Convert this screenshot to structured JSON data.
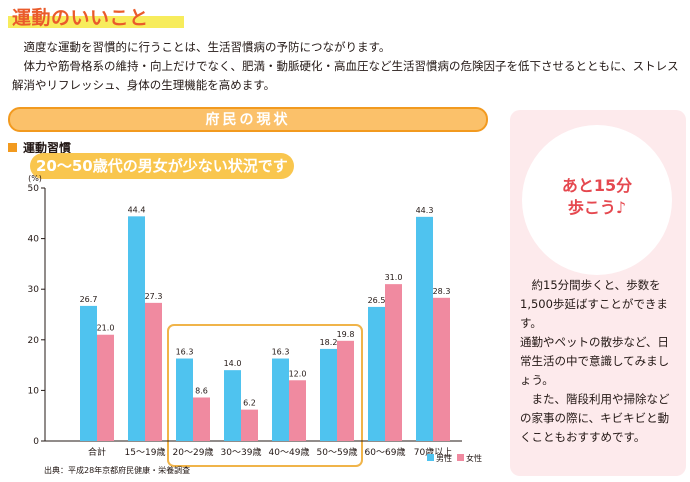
{
  "page": {
    "title": "運動のいいこと",
    "intro": [
      "適度な運動を習慣的に行うことは、生活習慣病の予防につながります。",
      "体力や筋骨格系の維持・向上だけでなく、肥満・動脈硬化・高血圧など生活習慣病の危険因子を低下させるとともに、ストレス解消やリフレッシュ、身体の生理機能を高めます。"
    ],
    "section_banner": "府民の現状",
    "habit_label": "運動習慣",
    "subtitle": "20～50歳代の男女が少ない状況です",
    "source": "出典：平成28年京都府民健康・栄養調査"
  },
  "side": {
    "circle_line1": "あと15分",
    "circle_line2": "歩こう♪",
    "paragraphs": [
      "約15分間歩くと、歩数を1,500歩延ばすことができます。",
      "通勤やペットの散歩など、日常生活の中で意識してみましょう。",
      "また、階段利用や掃除などの家事の際に、キビキビと動くこともおすすめです。"
    ]
  },
  "colors": {
    "male": "#4fc3ef",
    "female": "#f08aa0",
    "highlight_box": "#f0b44a",
    "accent_orange": "#ea5b2b",
    "side_card": "#fdeaec"
  },
  "chart_data": {
    "type": "bar",
    "unit_label": "(%)",
    "categories": [
      "合計",
      "15～19歳",
      "20～29歳",
      "30～39歳",
      "40～49歳",
      "50～59歳",
      "60～69歳",
      "70歳以上"
    ],
    "series": [
      {
        "name": "男性",
        "values": [
          26.7,
          44.4,
          16.3,
          14.0,
          16.3,
          18.2,
          26.5,
          44.3
        ]
      },
      {
        "name": "女性",
        "values": [
          21.0,
          27.3,
          8.6,
          6.2,
          12.0,
          19.8,
          31.0,
          28.3
        ]
      }
    ],
    "ylim": [
      0,
      50
    ],
    "yticks": [
      0,
      10,
      20,
      30,
      40,
      50
    ],
    "grid": false,
    "legend_position": "bottom-right",
    "highlighted_categories": [
      "20～29歳",
      "30～39歳",
      "40～49歳",
      "50～59歳"
    ]
  }
}
